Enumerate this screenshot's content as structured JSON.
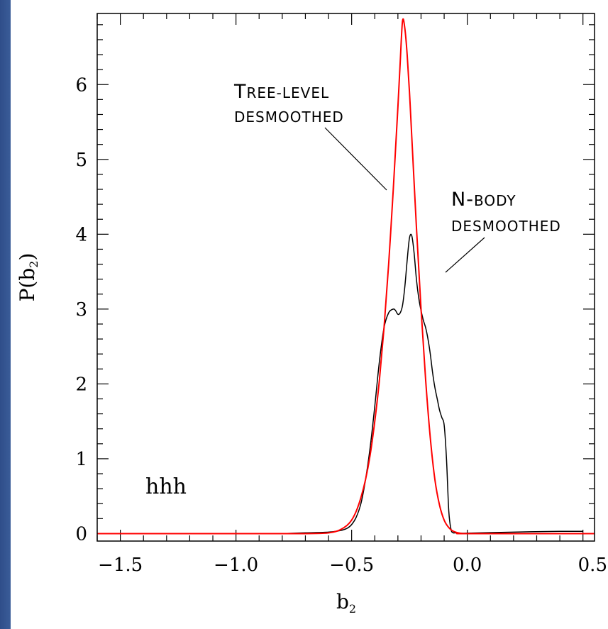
{
  "chart_data": {
    "type": "line",
    "title": "",
    "xlabel": "b",
    "xlabel_sub": "2",
    "ylabel": "P(b",
    "ylabel_sub": "2",
    "ylabel_end": ")",
    "xlim": [
      -1.6,
      0.55
    ],
    "ylim": [
      -0.1,
      6.95
    ],
    "x_ticks": [
      -1.5,
      -1.0,
      -0.5,
      0.0,
      0.5
    ],
    "x_tick_labels": [
      "−1.5",
      "−1.0",
      "−0.5",
      "0.0",
      "0.5"
    ],
    "y_ticks": [
      0,
      1,
      2,
      3,
      4,
      5,
      6
    ],
    "y_tick_labels": [
      "0",
      "1",
      "2",
      "3",
      "4",
      "5",
      "6"
    ],
    "corner_label": "hhh",
    "annotations": [
      {
        "id": "tree",
        "line1_first": "T",
        "line1_rest": "REE-LEVEL",
        "line2": "DESMOOTHED"
      },
      {
        "id": "nbody",
        "line1_first": "N-",
        "line1_rest": "BODY",
        "line2": "DESMOOTHED"
      }
    ],
    "series": [
      {
        "id": "tree-level",
        "color": "#ff0000",
        "x": [
          -1.6,
          -0.9,
          -0.7,
          -0.62,
          -0.58,
          -0.55,
          -0.52,
          -0.5,
          -0.48,
          -0.46,
          -0.44,
          -0.42,
          -0.4,
          -0.38,
          -0.36,
          -0.34,
          -0.32,
          -0.31,
          -0.3,
          -0.29,
          -0.28,
          -0.27,
          -0.26,
          -0.25,
          -0.24,
          -0.22,
          -0.2,
          -0.18,
          -0.16,
          -0.14,
          -0.12,
          -0.1,
          -0.08,
          -0.06,
          -0.04,
          -0.02,
          0.0,
          0.55
        ],
        "y": [
          0,
          0,
          0,
          0.005,
          0.02,
          0.05,
          0.11,
          0.18,
          0.3,
          0.48,
          0.72,
          1.05,
          1.5,
          2.05,
          2.75,
          3.6,
          4.6,
          5.15,
          5.7,
          6.3,
          6.85,
          6.75,
          6.4,
          5.9,
          5.3,
          4.1,
          3.0,
          2.05,
          1.28,
          0.72,
          0.38,
          0.18,
          0.08,
          0.03,
          0.01,
          0.0,
          0,
          0
        ]
      },
      {
        "id": "n-body",
        "color": "#000000",
        "x": [
          -0.8,
          -0.7,
          -0.6,
          -0.55,
          -0.52,
          -0.5,
          -0.48,
          -0.46,
          -0.44,
          -0.42,
          -0.4,
          -0.38,
          -0.36,
          -0.34,
          -0.32,
          -0.31,
          -0.3,
          -0.29,
          -0.28,
          -0.27,
          -0.26,
          -0.25,
          -0.24,
          -0.23,
          -0.22,
          -0.21,
          -0.2,
          -0.19,
          -0.18,
          -0.17,
          -0.16,
          -0.15,
          -0.14,
          -0.13,
          -0.12,
          -0.11,
          -0.1,
          -0.09,
          -0.08,
          -0.07,
          -0.06,
          -0.055,
          -0.05,
          -0.045,
          -0.04,
          -0.035,
          0.0,
          0.2,
          0.4,
          0.5
        ],
        "y": [
          0,
          0.01,
          0.02,
          0.04,
          0.07,
          0.12,
          0.22,
          0.4,
          0.72,
          1.15,
          1.7,
          2.3,
          2.75,
          2.95,
          3.0,
          2.98,
          2.93,
          2.95,
          3.05,
          3.3,
          3.65,
          3.95,
          3.98,
          3.75,
          3.4,
          3.15,
          2.98,
          2.85,
          2.75,
          2.6,
          2.4,
          2.15,
          1.95,
          1.8,
          1.65,
          1.55,
          1.45,
          1.0,
          0.3,
          0.05,
          0.01,
          0.01,
          0.01,
          0.01,
          0.01,
          0.005,
          0.005,
          0.02,
          0.03,
          0.03
        ]
      }
    ]
  }
}
